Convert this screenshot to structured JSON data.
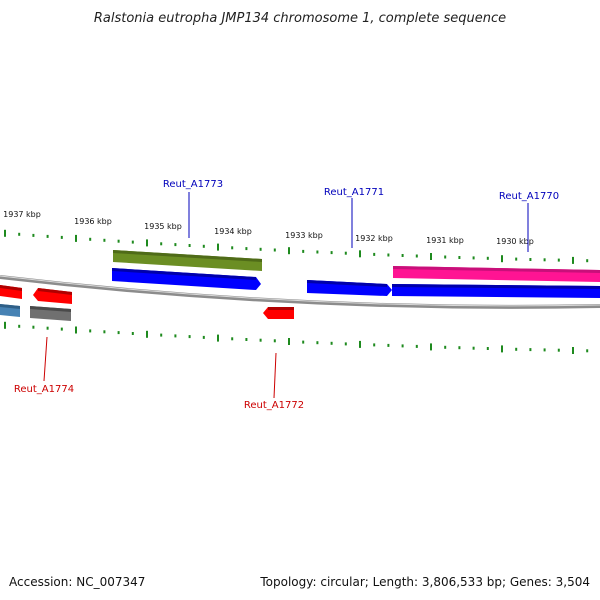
{
  "title": "Ralstonia eutropha JMP134 chromosome 1, complete sequence",
  "footer": {
    "accession": "Accession: NC_007347",
    "topology": "Topology: circular; Length: 3,806,533 bp; Genes: 3,504"
  },
  "colors": {
    "tick": "#1e8a1e",
    "backbone": "#8c8c8c",
    "label_top": "#0000bb",
    "label_bottom": "#cc0000",
    "blue": "#0000ff",
    "red": "#ff0000",
    "green": "#6b8e23",
    "pink": "#ff1493",
    "steel": "#4682b4",
    "grey": "#707070"
  },
  "scale_labels": [
    "1937 kbp",
    "1936 kbp",
    "1935 kbp",
    "1934 kbp",
    "1933 kbp",
    "1932 kbp",
    "1931 kbp",
    "1930 kbp"
  ],
  "genes": {
    "top": [
      "Reut_A1773",
      "Reut_A1771",
      "Reut_A1770"
    ],
    "bottom": [
      "Reut_A1774",
      "Reut_A1772"
    ]
  },
  "icons": {
    "gene_feature": "arrow-shape",
    "backbone": "chromosome-line"
  }
}
